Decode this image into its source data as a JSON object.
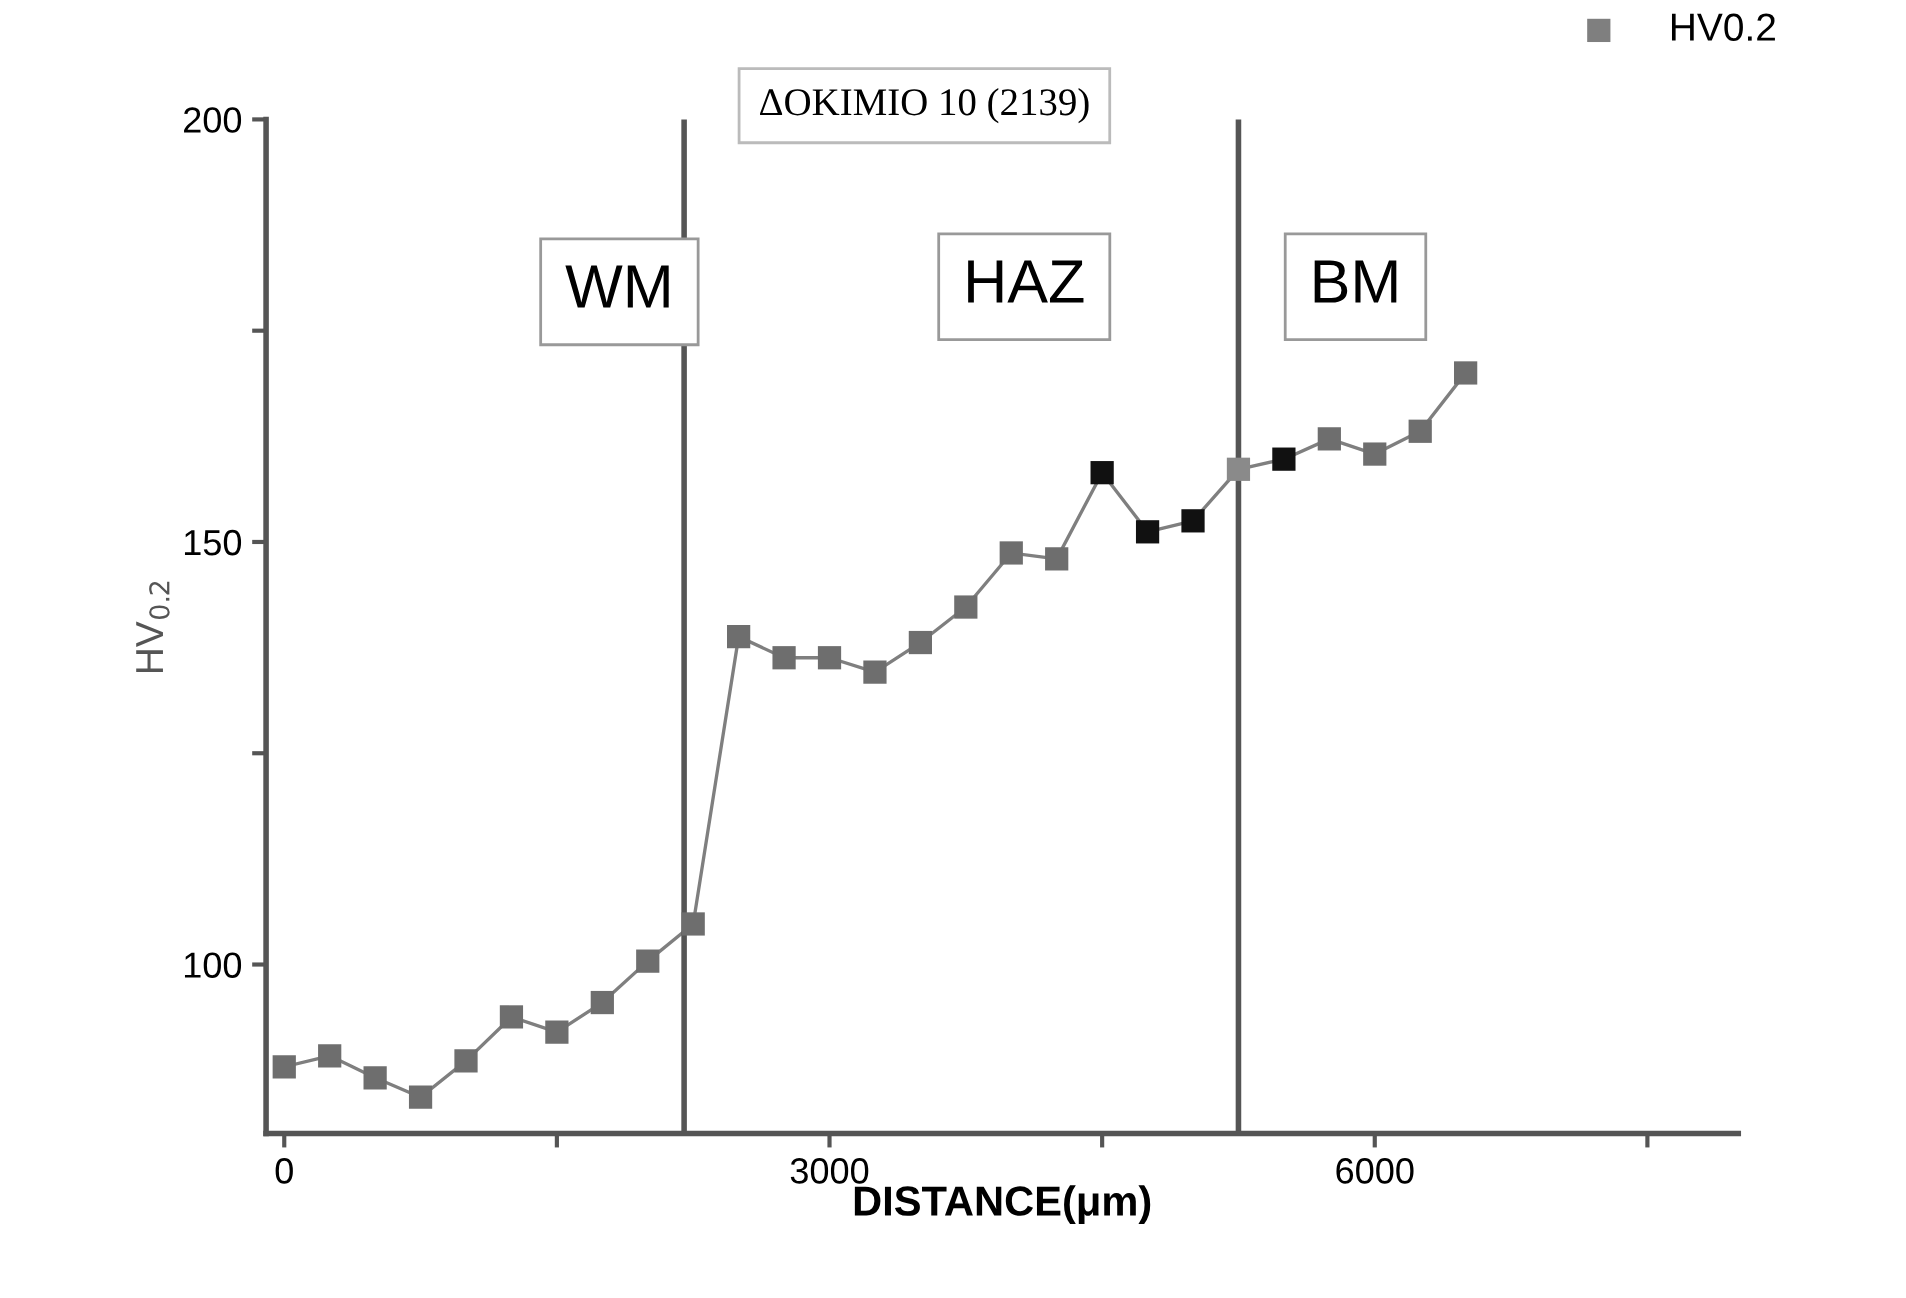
{
  "chart_data": {
    "type": "line",
    "title": "ΔOKIMIO 10 (2139)",
    "xlabel": "DISTANCE(μm)",
    "ylabel": "HV$_{0.2}$",
    "x": [
      0,
      250,
      500,
      750,
      1000,
      1250,
      1500,
      1750,
      2000,
      2250,
      2500,
      2750,
      3000,
      3250,
      3500,
      3750,
      4000,
      4250,
      4500,
      4750,
      5000,
      5250,
      5500,
      5750,
      6000,
      6250,
      6500
    ],
    "series": [
      {
        "name": "HV0.2",
        "color": "#7f7f7f",
        "colors": [
          "#6e6e6e",
          "#6e6e6e",
          "#6e6e6e",
          "#6e6e6e",
          "#6e6e6e",
          "#6e6e6e",
          "#6e6e6e",
          "#6e6e6e",
          "#6e6e6e",
          "#6e6e6e",
          "#6e6e6e",
          "#6e6e6e",
          "#6e6e6e",
          "#6e6e6e",
          "#6e6e6e",
          "#6e6e6e",
          "#6e6e6e",
          "#6e6e6e",
          "#111111",
          "#111111",
          "#111111",
          "#8a8a8a",
          "#111111",
          "#6e6e6e",
          "#6e6e6e",
          "#6e6e6e",
          "#6e6e6e"
        ],
        "values": [
          87.9,
          89.2,
          86.6,
          84.3,
          88.6,
          93.8,
          92.0,
          95.5,
          100.4,
          104.8,
          138.8,
          136.3,
          136.3,
          134.6,
          138.1,
          142.3,
          148.7,
          148.0,
          158.2,
          151.2,
          152.5,
          158.6,
          159.8,
          162.2,
          160.4,
          163.1,
          170.0
        ]
      }
    ],
    "xlim": [
      -100,
      8000
    ],
    "xticks": [
      0,
      {
        "value": 1500,
        "label": null
      },
      3000,
      {
        "value": 4500,
        "label": null
      },
      6000,
      {
        "value": 7500,
        "label": null
      }
    ],
    "ylim": [
      80,
      200
    ],
    "yticks": [
      100,
      {
        "value": 125,
        "label": null
      },
      150,
      {
        "value": 175,
        "label": null
      },
      200
    ],
    "ref_lines": [
      {
        "axis": "x",
        "value": 2200,
        "color": "#555555"
      },
      {
        "axis": "x",
        "value": 5250,
        "color": "#555555"
      }
    ],
    "annotations": [
      "WM",
      "HAZ",
      "BM"
    ],
    "marker": "square",
    "line_style": "solid",
    "grid": false,
    "legend": "top right"
  }
}
